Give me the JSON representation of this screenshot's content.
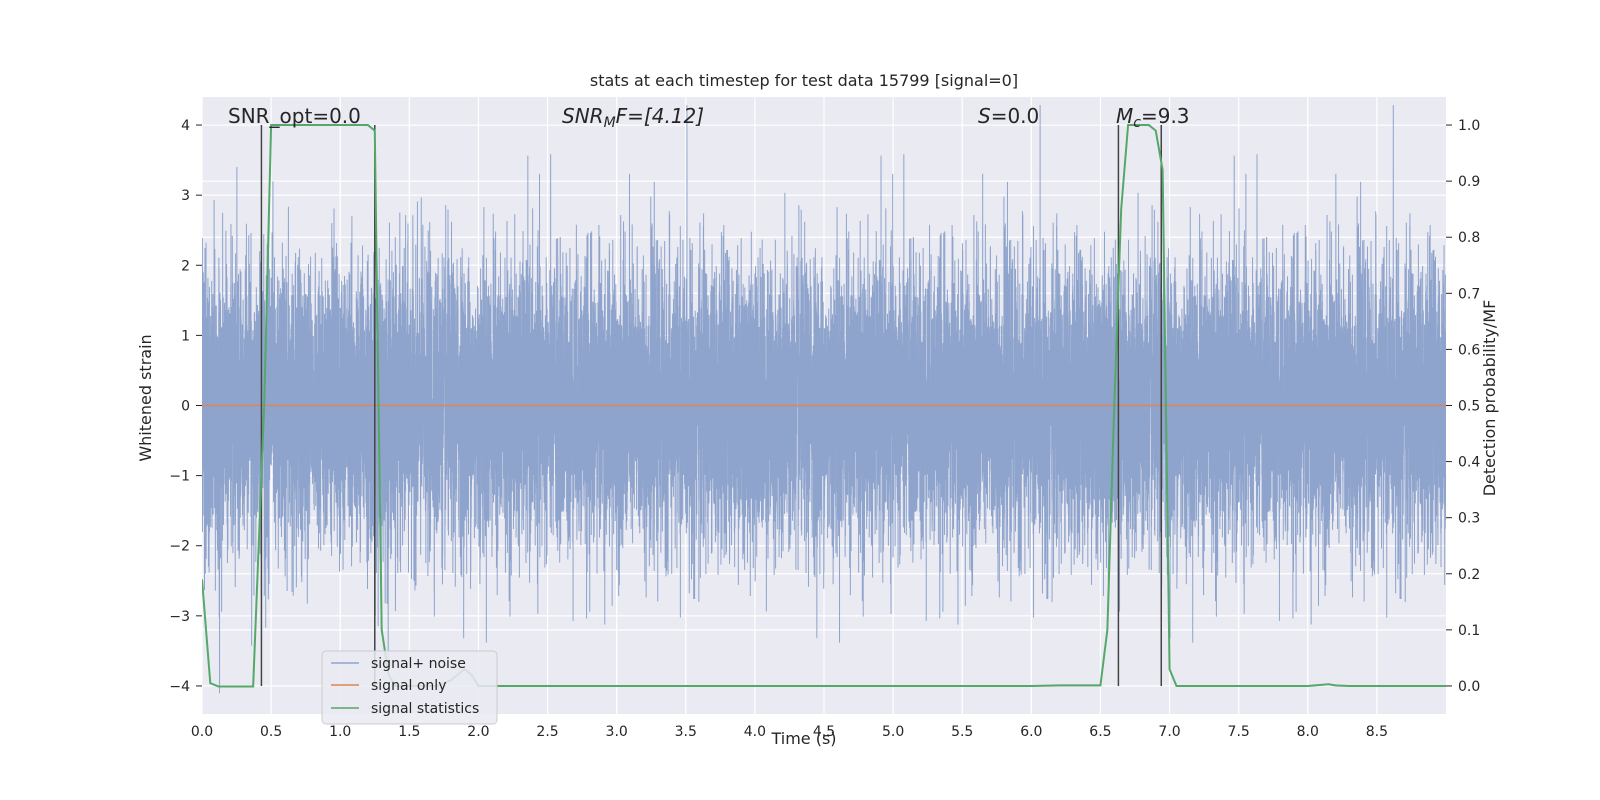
{
  "chart_data": {
    "type": "line",
    "title": "stats at each timestep for test data 15799 [signal=0]",
    "xlabel": "Time (s)",
    "ylabel": "Whitened strain",
    "ylabel_right": "Detection probability/MF",
    "xlim": [
      0.0,
      9.0
    ],
    "ylim": [
      -4.4,
      4.4
    ],
    "ylim_right": [
      -0.05,
      1.05
    ],
    "x_ticks": [
      0.0,
      0.5,
      1.0,
      1.5,
      2.0,
      2.5,
      3.0,
      3.5,
      4.0,
      4.5,
      5.0,
      5.5,
      6.0,
      6.5,
      7.0,
      7.5,
      8.0,
      8.5
    ],
    "x_tick_labels": [
      "0.0",
      "0.5",
      "1.0",
      "1.5",
      "2.0",
      "2.5",
      "3.0",
      "3.5",
      "4.0",
      "4.5",
      "5.0",
      "5.5",
      "6.0",
      "6.5",
      "7.0",
      "7.5",
      "8.0",
      "8.5"
    ],
    "y_ticks": [
      4,
      3,
      2,
      1,
      0,
      -1,
      -2,
      -3,
      -4
    ],
    "y_tick_labels": [
      "4",
      "3",
      "2",
      "1",
      "0",
      "−1",
      "−2",
      "−3",
      "−4"
    ],
    "y_right_ticks": [
      1.0,
      0.9,
      0.8,
      0.7,
      0.6,
      0.5,
      0.4,
      0.3,
      0.2,
      0.1,
      0.0
    ],
    "y_right_tick_labels": [
      "1.0",
      "0.9",
      "0.8",
      "0.7",
      "0.6",
      "0.5",
      "0.4",
      "0.3",
      "0.2",
      "0.1",
      "0.0"
    ],
    "grid": true,
    "legend_placement": "lower-left",
    "annotations": {
      "snr_opt": "SNR_opt=0.0",
      "snr_mf_base": "SNR",
      "snr_mf_sub": "M",
      "snr_mf_rest": "F=[4.12]",
      "s_base": "S",
      "s_rest": "=0.0",
      "mc_base": "M",
      "mc_sub": "c",
      "mc_rest": "=9.3"
    },
    "colors": {
      "background": "#eaeaf2",
      "grid": "#ffffff",
      "noise": "#8fa4cc",
      "signal_only": "#dd8452",
      "statistics": "#55a868",
      "vline": "#444444"
    },
    "series": [
      {
        "name": "signal+ noise",
        "axis": "left",
        "sample_rate_hz": 2048,
        "duration_s": 9.0,
        "std": 1.0
      },
      {
        "name": "signal only",
        "axis": "left",
        "x": [
          0.0,
          9.0
        ],
        "y": [
          0.0,
          0.0
        ]
      },
      {
        "name": "signal statistics",
        "axis": "right",
        "x": [
          0.0,
          0.06,
          0.12,
          0.2,
          0.3,
          0.37,
          0.45,
          0.5,
          0.6,
          0.8,
          1.0,
          1.2,
          1.25,
          1.3,
          1.35,
          1.4,
          1.5,
          1.6,
          1.7,
          1.8,
          1.85,
          1.9,
          1.95,
          2.0,
          2.5,
          3.0,
          4.0,
          5.0,
          6.0,
          6.2,
          6.4,
          6.5,
          6.55,
          6.6,
          6.65,
          6.7,
          6.75,
          6.8,
          6.85,
          6.9,
          6.95,
          7.0,
          7.05,
          7.5,
          8.0,
          8.15,
          8.2,
          8.3,
          9.0
        ],
        "y": [
          0.19,
          0.005,
          -0.001,
          -0.001,
          -0.001,
          -0.001,
          0.5,
          1.0,
          1.0,
          1.0,
          1.0,
          1.0,
          0.99,
          0.1,
          0.02,
          0.0,
          0.0,
          0.0,
          0.0,
          0.01,
          0.02,
          0.03,
          0.02,
          0.0,
          0.0,
          0.0,
          0.0,
          0.0,
          0.0,
          0.001,
          0.001,
          0.001,
          0.1,
          0.5,
          0.85,
          1.0,
          1.0,
          1.0,
          1.0,
          0.99,
          0.92,
          0.03,
          0.0,
          0.0,
          0.0,
          0.003,
          0.001,
          0.0,
          0.0
        ]
      }
    ],
    "vlines_x": [
      0.43,
      1.25,
      6.63,
      6.94
    ]
  }
}
